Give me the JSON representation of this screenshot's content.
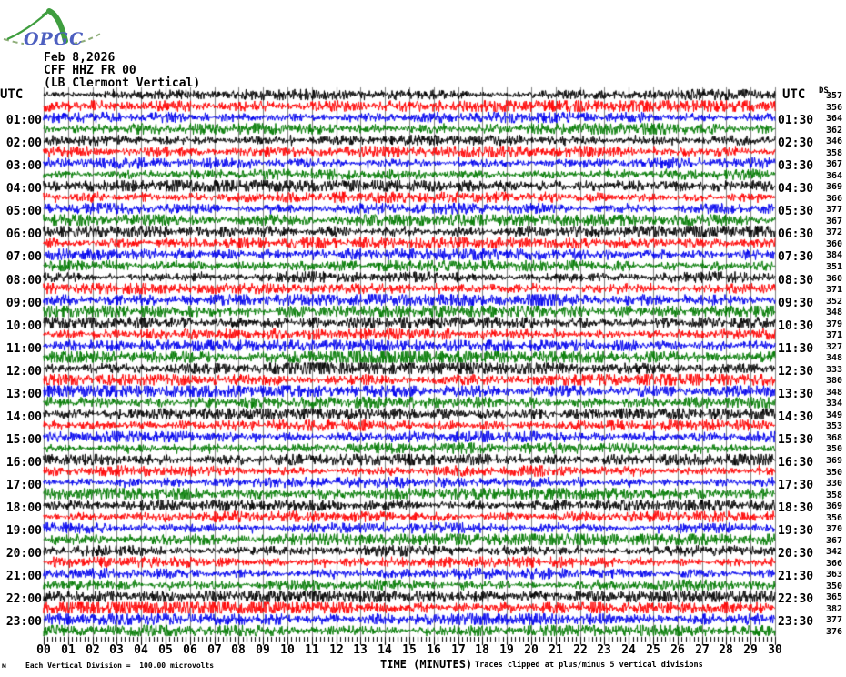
{
  "logo": {
    "text": "OPGC"
  },
  "header": {
    "date": "Feb 8,2026",
    "station": "CFF HHZ FR 00",
    "location": "(LB Clermont Vertical)"
  },
  "axis": {
    "utc_left": "UTC",
    "utc_right": "UTC",
    "ds_label": "DS",
    "left_labels": [
      "01:00",
      "02:00",
      "03:00",
      "04:00",
      "05:00",
      "06:00",
      "07:00",
      "08:00",
      "09:00",
      "10:00",
      "11:00",
      "12:00",
      "13:00",
      "14:00",
      "15:00",
      "16:00",
      "17:00",
      "18:00",
      "19:00",
      "20:00",
      "21:00",
      "22:00",
      "23:00"
    ],
    "right_labels": [
      "01:30",
      "02:30",
      "03:30",
      "04:30",
      "05:30",
      "06:30",
      "07:30",
      "08:30",
      "09:30",
      "10:30",
      "11:30",
      "12:30",
      "13:30",
      "14:30",
      "15:30",
      "16:30",
      "17:30",
      "18:30",
      "19:30",
      "20:30",
      "21:30",
      "22:30",
      "23:30"
    ],
    "x_tick_labels": [
      "00",
      "01",
      "02",
      "03",
      "04",
      "05",
      "06",
      "07",
      "08",
      "09",
      "10",
      "11",
      "12",
      "13",
      "14",
      "15",
      "16",
      "17",
      "18",
      "19",
      "20",
      "21",
      "22",
      "23",
      "24",
      "25",
      "26",
      "27",
      "28",
      "29",
      "30"
    ]
  },
  "footer": {
    "left": "Each Vertical Division =  100.00 microvolts",
    "center": "TIME (MINUTES)",
    "right": "Traces clipped at plus/minus 5 vertical divisions",
    "stray_mark": "м"
  },
  "colors": {
    "trace_cycle": [
      "#000000",
      "#ff0000",
      "#0000ee",
      "#007a00"
    ],
    "grid": "#7f7f7f",
    "ticks": "#000000",
    "text": "#000000",
    "logo_green": "#3f9e3f",
    "logo_dash": "#8fae7a",
    "logo_blue": "#4d5fc0"
  },
  "chart_data": {
    "type": "line",
    "subtype": "helicorder-seismogram",
    "title": "CFF HHZ FR 00 (LB Clermont Vertical) Feb 8,2026",
    "x_axis": {
      "label": "TIME (MINUTES)",
      "min": 0,
      "max": 30,
      "major_tick_minutes": 1,
      "minor_tick_seconds": 10
    },
    "traces": {
      "count": 48,
      "minutes_per_trace": 30,
      "first_trace_start_utc": "00:00",
      "last_trace_start_utc": "23:30",
      "color_cycle_order": [
        "black",
        "red",
        "blue",
        "green"
      ]
    },
    "scale": {
      "division_microvolts": 100.0,
      "clip_divisions": 5
    },
    "right_column_values": [
      357,
      356,
      364,
      362,
      346,
      358,
      367,
      364,
      369,
      366,
      377,
      367,
      372,
      360,
      384,
      351,
      360,
      371,
      352,
      348,
      379,
      371,
      327,
      348,
      333,
      380,
      348,
      334,
      349,
      353,
      368,
      350,
      369,
      350,
      330,
      358,
      369,
      356,
      370,
      367,
      342,
      366,
      363,
      350,
      365,
      382,
      377,
      376
    ],
    "noise_seed": 20260208,
    "events": [
      {
        "line": 18,
        "minute": 20.4,
        "width_min": 0.35,
        "gain": 2.4
      },
      {
        "line": 23,
        "minute": 13.5,
        "width_min": 2.0,
        "gain": 1.6
      },
      {
        "line": 24,
        "minute": 11.2,
        "width_min": 0.6,
        "gain": 2.4
      },
      {
        "line": 45,
        "minute": 5.0,
        "width_min": 6.0,
        "gain": 1.5
      },
      {
        "line": 46,
        "minute": 17.6,
        "width_min": 0.3,
        "gain": 2.6
      }
    ]
  }
}
